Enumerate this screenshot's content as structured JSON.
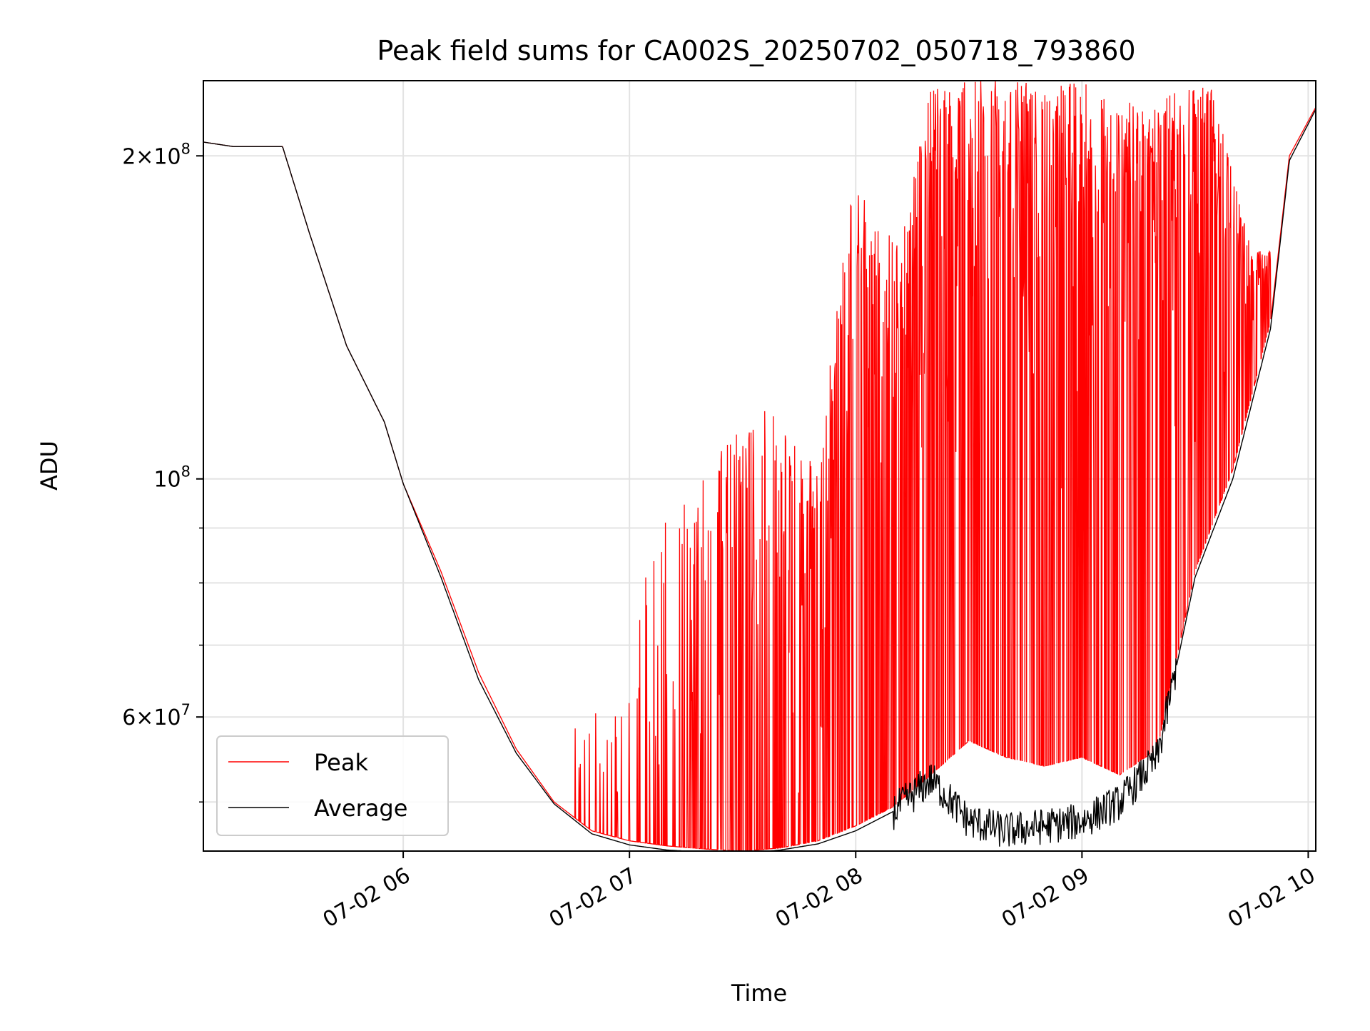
{
  "chart_data": {
    "type": "line",
    "title": "Peak field sums for CA002S_20250702_050718_793860",
    "xlabel": "Time",
    "ylabel": "ADU",
    "x_axis_type": "time",
    "y_scale": "log",
    "grid": true,
    "legend_position": "lower-left",
    "xlim": [
      "2025-07-02 05:07",
      "2025-07-02 10:02"
    ],
    "ylim": [
      45000000,
      235000000
    ],
    "x_tick_labels": [
      "07-02 06",
      "07-02 07",
      "07-02 08",
      "07-02 09",
      "07-02 10"
    ],
    "x_ticks": [
      "2025-07-02 06:00",
      "2025-07-02 07:00",
      "2025-07-02 08:00",
      "2025-07-02 09:00",
      "2025-07-02 10:00"
    ],
    "y_major_ticks": [
      {
        "value": 200000000,
        "mantissa": "2",
        "exponent": "8"
      },
      {
        "value": 100000000,
        "mantissa": "",
        "exponent": "8"
      },
      {
        "value": 60000000,
        "mantissa": "6",
        "exponent": "7"
      }
    ],
    "y_minor_ticks": [
      50000000,
      70000000,
      80000000,
      90000000
    ],
    "series": [
      {
        "name": "Peak",
        "color": "#ff0000",
        "x": [
          "05:07",
          "05:15",
          "05:28",
          "05:35",
          "05:45",
          "05:55",
          "06:00",
          "06:10",
          "06:20",
          "06:30",
          "06:40",
          "06:50",
          "07:00",
          "07:10",
          "07:20",
          "07:30",
          "07:40",
          "07:50",
          "08:00",
          "08:10",
          "08:20",
          "08:30",
          "08:40",
          "08:50",
          "09:00",
          "09:10",
          "09:20",
          "09:30",
          "09:40",
          "09:50",
          "09:55",
          "10:02"
        ],
        "y": [
          206000000,
          204000000,
          204000000,
          170000000,
          133000000,
          113000000,
          99000000,
          82000000,
          66000000,
          56000000,
          50000000,
          47000000,
          46000000,
          45500000,
          45200000,
          45000000,
          45300000,
          46000000,
          47500000,
          49500000,
          53000000,
          57000000,
          55000000,
          54000000,
          55000000,
          53000000,
          56000000,
          82000000,
          102000000,
          140000000,
          200000000,
          222000000
        ],
        "spikes": [
          {
            "x": "06:59",
            "y": 61000000
          },
          {
            "x": "07:05",
            "y": 86000000
          },
          {
            "x": "07:11",
            "y": 93000000
          },
          {
            "x": "07:25",
            "y": 108000000
          },
          {
            "x": "07:36",
            "y": 117000000
          },
          {
            "x": "07:50",
            "y": 104000000
          },
          {
            "x": "07:59",
            "y": 190000000
          },
          {
            "x": "08:03",
            "y": 182000000
          },
          {
            "x": "08:12",
            "y": 166000000
          },
          {
            "x": "08:20",
            "y": 235000000
          },
          {
            "x": "08:30",
            "y": 235000000
          },
          {
            "x": "08:40",
            "y": 235000000
          },
          {
            "x": "08:50",
            "y": 235000000
          },
          {
            "x": "09:00",
            "y": 235000000
          },
          {
            "x": "09:10",
            "y": 225000000
          },
          {
            "x": "09:20",
            "y": 226000000
          },
          {
            "x": "09:34",
            "y": 235000000
          },
          {
            "x": "09:45",
            "y": 163000000
          }
        ]
      },
      {
        "name": "Average",
        "color": "#000000",
        "x": [
          "05:07",
          "05:15",
          "05:28",
          "05:35",
          "05:45",
          "05:55",
          "06:00",
          "06:10",
          "06:20",
          "06:30",
          "06:40",
          "06:50",
          "07:00",
          "07:10",
          "07:20",
          "07:30",
          "07:40",
          "07:50",
          "08:00",
          "08:10",
          "08:20",
          "08:30",
          "08:40",
          "08:50",
          "09:00",
          "09:10",
          "09:20",
          "09:30",
          "09:40",
          "09:50",
          "09:55",
          "10:02"
        ],
        "y": [
          206000000,
          204000000,
          204000000,
          170000000,
          133000000,
          113000000,
          99000000,
          81000000,
          65000000,
          55500000,
          49800000,
          46700000,
          45600000,
          45100000,
          44900000,
          44800000,
          45100000,
          45700000,
          47000000,
          49000000,
          52500000,
          48000000,
          47000000,
          47500000,
          48000000,
          50000000,
          55000000,
          81000000,
          100000000,
          138000000,
          198000000,
          221000000
        ]
      }
    ]
  }
}
